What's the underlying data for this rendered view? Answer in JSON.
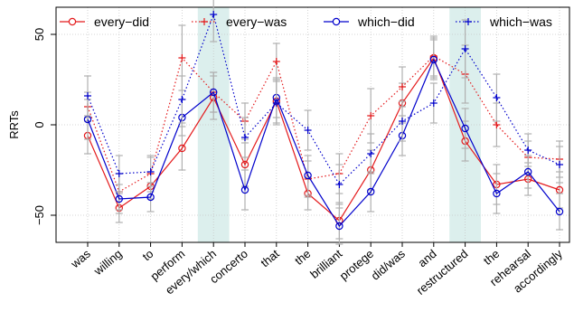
{
  "chart_data": {
    "type": "line",
    "ylabel": "RRTs",
    "xlabel": "",
    "ylim": [
      -65,
      65
    ],
    "yticks": [
      -50,
      0,
      50
    ],
    "grid": true,
    "legend_position": "top",
    "categories": [
      "was",
      "willing",
      "to",
      "perform",
      "every/which",
      "concerto",
      "that",
      "the",
      "brilliant",
      "protege",
      "did/was",
      "and",
      "restructured",
      "the",
      "rehearsal",
      "accordingly"
    ],
    "highlighted_categories": [
      "every/which",
      "restructured"
    ],
    "highlight_color": "#dcefed",
    "series": [
      {
        "name": "every−did",
        "color": "#e41a1c",
        "line": "solid",
        "marker": "circle",
        "values": [
          -6,
          -46,
          -34,
          -13,
          15,
          -22,
          13,
          -38,
          -53,
          -25,
          12,
          37,
          -9,
          -33,
          -30,
          -36
        ],
        "err": [
          10,
          8,
          7,
          12,
          12,
          12,
          12,
          9,
          10,
          11,
          11,
          11,
          11,
          11,
          9,
          10
        ]
      },
      {
        "name": "every−was",
        "color": "#e41a1c",
        "line": "dotted",
        "marker": "plus",
        "values": [
          10,
          -37,
          -27,
          37,
          18,
          2,
          35,
          -30,
          -27,
          5,
          21,
          38,
          28,
          0,
          -18,
          -19
        ],
        "err": [
          8,
          10,
          10,
          18,
          11,
          10,
          10,
          10,
          11,
          15,
          11,
          11,
          16,
          12,
          9,
          10
        ]
      },
      {
        "name": "which−did",
        "color": "#0000cc",
        "line": "solid",
        "marker": "circle",
        "values": [
          3,
          -41,
          -40,
          4,
          18,
          -36,
          15,
          -28,
          -56,
          -37,
          -6,
          36,
          -2,
          -38,
          -26,
          -48
        ],
        "err": [
          11,
          8,
          8,
          10,
          11,
          11,
          11,
          11,
          10,
          11,
          11,
          11,
          11,
          11,
          9,
          10
        ]
      },
      {
        "name": "which−was",
        "color": "#0000cc",
        "line": "dotted",
        "marker": "plus",
        "values": [
          16,
          -27,
          -26,
          14,
          61,
          -7,
          12,
          -3,
          -33,
          -16,
          2,
          12,
          42,
          15,
          -14,
          -22
        ],
        "err": [
          11,
          10,
          8,
          13,
          15,
          11,
          12,
          11,
          11,
          11,
          11,
          11,
          16,
          13,
          9,
          10
        ]
      }
    ]
  }
}
